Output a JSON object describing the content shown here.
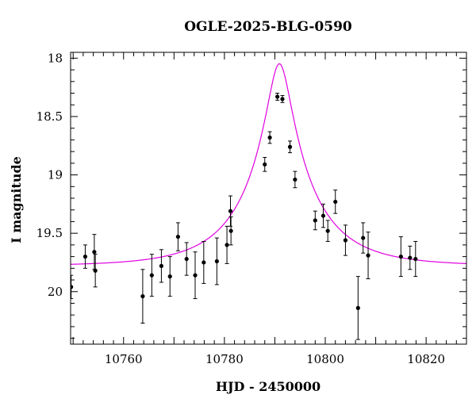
{
  "chart_data": {
    "type": "scatter",
    "title": "OGLE-2025-BLG-0590",
    "xlabel": "HJD - 2450000",
    "ylabel": "I magnitude",
    "xlim": [
      10749.5,
      10828
    ],
    "ylim": [
      20.45,
      17.95
    ],
    "y_inverted": true,
    "grid": false,
    "x_ticks": [
      10760,
      10780,
      10800,
      10820
    ],
    "x_tick_labels": [
      "10760",
      "10780",
      "10800",
      "10820"
    ],
    "y_ticks": [
      18,
      18.5,
      19,
      19.5,
      20
    ],
    "y_tick_labels": [
      "18",
      "18.5",
      "19",
      "19.5",
      "20"
    ],
    "series": [
      {
        "type": "scatter",
        "color": "#000000",
        "points": [
          {
            "x": 10749.6,
            "y": 19.96,
            "err": 0.1
          },
          {
            "x": 10752.4,
            "y": 19.7,
            "err": 0.1
          },
          {
            "x": 10754.2,
            "y": 19.66,
            "err": 0.15
          },
          {
            "x": 10754.4,
            "y": 19.82,
            "err": 0.14
          },
          {
            "x": 10763.8,
            "y": 20.04,
            "err": 0.23
          },
          {
            "x": 10765.6,
            "y": 19.86,
            "err": 0.18
          },
          {
            "x": 10767.5,
            "y": 19.78,
            "err": 0.14
          },
          {
            "x": 10769.2,
            "y": 19.87,
            "err": 0.17
          },
          {
            "x": 10770.8,
            "y": 19.53,
            "err": 0.12
          },
          {
            "x": 10772.5,
            "y": 19.72,
            "err": 0.14
          },
          {
            "x": 10774.2,
            "y": 19.86,
            "err": 0.2
          },
          {
            "x": 10775.9,
            "y": 19.75,
            "err": 0.18
          },
          {
            "x": 10778.5,
            "y": 19.74,
            "err": 0.2
          },
          {
            "x": 10780.5,
            "y": 19.6,
            "err": 0.16
          },
          {
            "x": 10781.2,
            "y": 19.31,
            "err": 0.13
          },
          {
            "x": 10781.3,
            "y": 19.48,
            "err": 0.12
          },
          {
            "x": 10788.0,
            "y": 18.91,
            "err": 0.06
          },
          {
            "x": 10789.0,
            "y": 18.68,
            "err": 0.05
          },
          {
            "x": 10790.5,
            "y": 18.33,
            "err": 0.03
          },
          {
            "x": 10791.5,
            "y": 18.35,
            "err": 0.03
          },
          {
            "x": 10793.0,
            "y": 18.76,
            "err": 0.05
          },
          {
            "x": 10794.0,
            "y": 19.04,
            "err": 0.07
          },
          {
            "x": 10798.0,
            "y": 19.39,
            "err": 0.08
          },
          {
            "x": 10799.6,
            "y": 19.35,
            "err": 0.1
          },
          {
            "x": 10800.5,
            "y": 19.48,
            "err": 0.09
          },
          {
            "x": 10802.0,
            "y": 19.23,
            "err": 0.1
          },
          {
            "x": 10804.0,
            "y": 19.56,
            "err": 0.13
          },
          {
            "x": 10806.5,
            "y": 20.14,
            "err": 0.27
          },
          {
            "x": 10807.5,
            "y": 19.54,
            "err": 0.13
          },
          {
            "x": 10808.5,
            "y": 19.69,
            "err": 0.2
          },
          {
            "x": 10815.0,
            "y": 19.7,
            "err": 0.17
          },
          {
            "x": 10816.8,
            "y": 19.71,
            "err": 0.1
          },
          {
            "x": 10817.9,
            "y": 19.72,
            "err": 0.15
          }
        ]
      },
      {
        "type": "line",
        "color": "#e000e0",
        "model": {
          "t0": 10790.9,
          "tE": 14.0,
          "u0": 0.16,
          "baseline": 19.78,
          "fs": 0.74
        }
      }
    ]
  }
}
